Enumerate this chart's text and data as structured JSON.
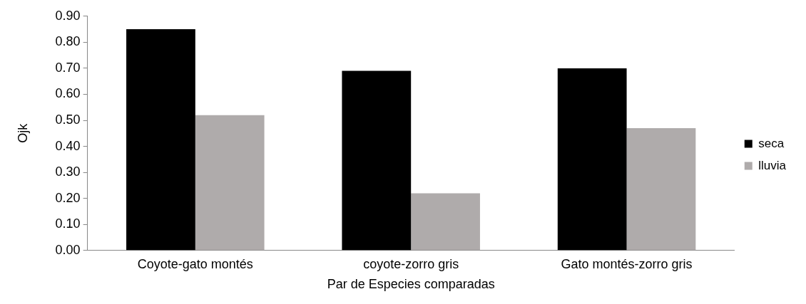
{
  "chart_data": {
    "type": "bar",
    "xlabel": "Par de Especies comparadas",
    "ylabel": "Ojk",
    "categories": [
      "Coyote-gato montés",
      "coyote-zorro gris",
      "Gato montés-zorro gris"
    ],
    "series": [
      {
        "name": "seca",
        "color": "#000000",
        "values": [
          0.85,
          0.69,
          0.7
        ]
      },
      {
        "name": "lluvia",
        "color": "#afabab",
        "values": [
          0.52,
          0.22,
          0.47
        ]
      }
    ],
    "ylim": [
      0,
      0.9
    ],
    "yticks": [
      {
        "value": 0,
        "label": "0.00"
      },
      {
        "value": 0.1,
        "label": "0.10"
      },
      {
        "value": 0.2,
        "label": "0.20"
      },
      {
        "value": 0.3,
        "label": "0.30"
      },
      {
        "value": 0.4,
        "label": "0.40"
      },
      {
        "value": 0.5,
        "label": "0.50"
      },
      {
        "value": 0.6,
        "label": "0.60"
      },
      {
        "value": 0.7,
        "label": "0.70"
      },
      {
        "value": 0.8,
        "label": "0.80"
      },
      {
        "value": 0.9,
        "label": "0.90"
      }
    ],
    "grid": false,
    "legend": "right"
  }
}
